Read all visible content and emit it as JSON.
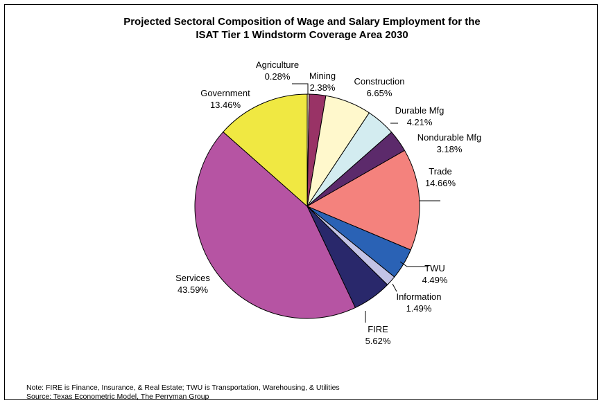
{
  "chart_data": {
    "type": "pie",
    "title_line1": "Projected Sectoral Composition of Wage and Salary Employment for the",
    "title_line2": "ISAT Tier 1 Windstorm Coverage Area 2030",
    "slices": [
      {
        "label": "Agriculture",
        "value": 0.28,
        "text": "0.28%",
        "color": "#ffe6cc"
      },
      {
        "label": "Mining",
        "value": 2.38,
        "text": "2.38%",
        "color": "#993366"
      },
      {
        "label": "Construction",
        "value": 6.65,
        "text": "6.65%",
        "color": "#fff8cc"
      },
      {
        "label": "Durable Mfg",
        "value": 4.21,
        "text": "4.21%",
        "color": "#d3ecf0"
      },
      {
        "label": "Nondurable Mfg",
        "value": 3.18,
        "text": "3.18%",
        "color": "#5c2a6b"
      },
      {
        "label": "Trade",
        "value": 14.66,
        "text": "14.66%",
        "color": "#f4827d"
      },
      {
        "label": "TWU",
        "value": 4.49,
        "text": "4.49%",
        "color": "#2a62b5"
      },
      {
        "label": "Information",
        "value": 1.49,
        "text": "1.49%",
        "color": "#c3c3e6"
      },
      {
        "label": "FIRE",
        "value": 5.62,
        "text": "5.62%",
        "color": "#29286b"
      },
      {
        "label": "Services",
        "value": 43.59,
        "text": "43.59%",
        "color": "#b654a3"
      },
      {
        "label": "Government",
        "value": 13.46,
        "text": "13.46%",
        "color": "#f0e842"
      }
    ]
  },
  "notes": {
    "line1": "Note: FIRE is Finance, Insurance, & Real Estate; TWU is Transportation, Warehousing, & Utilities",
    "line2": "Source: Texas Econometric Model, The Perryman Group"
  }
}
